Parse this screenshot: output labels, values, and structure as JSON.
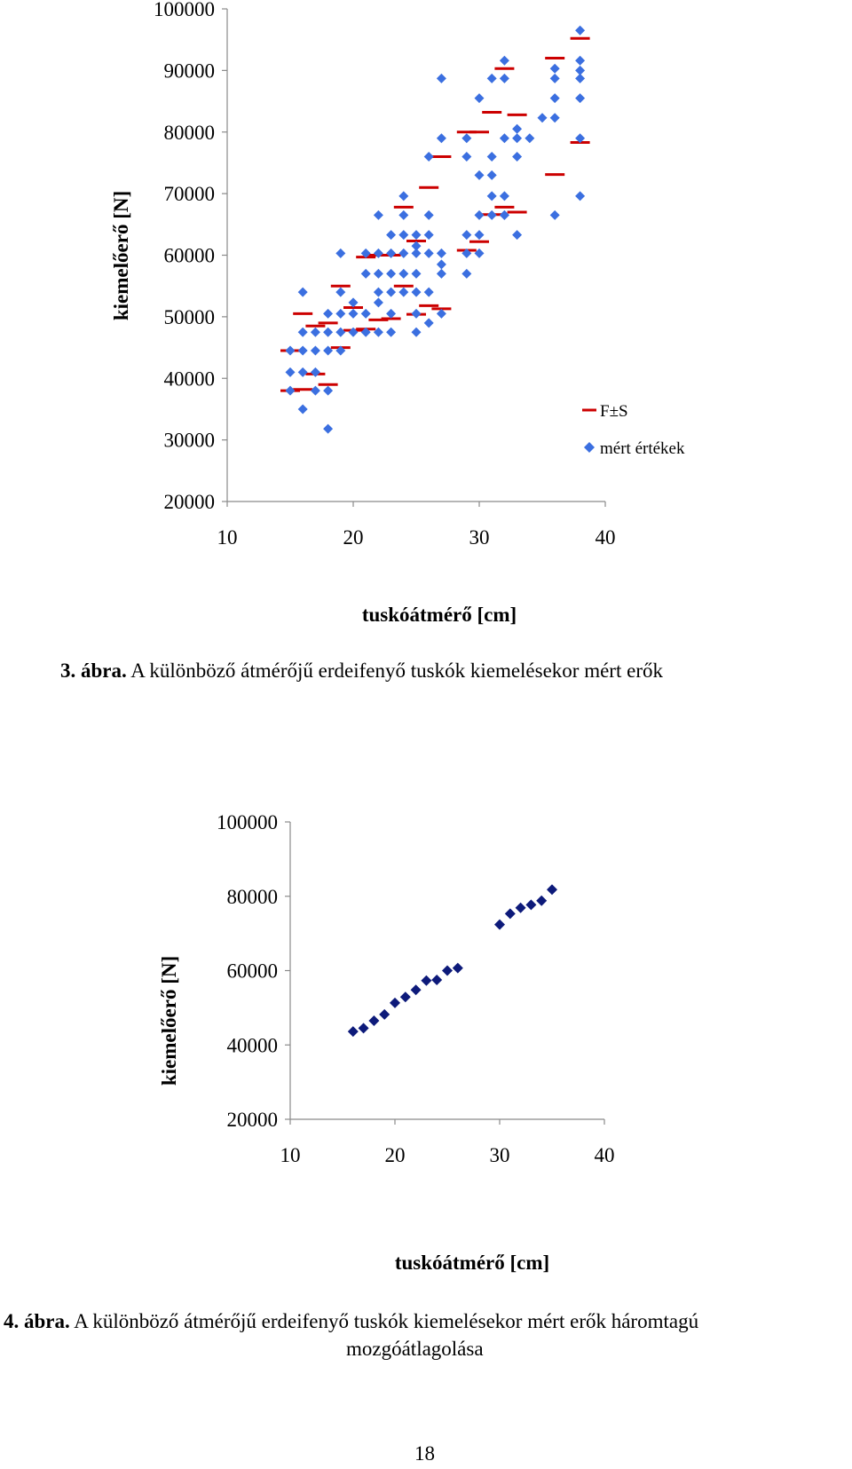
{
  "chart_data": [
    {
      "type": "scatter",
      "ylabel": "kiemelőerő [N]",
      "xlabel": "tuskóátmérő [cm]",
      "xlim": [
        10,
        40
      ],
      "ylim": [
        20000,
        100000
      ],
      "xticks": [
        "10",
        "20",
        "30",
        "40"
      ],
      "yticks": [
        "20000",
        "30000",
        "40000",
        "50000",
        "60000",
        "70000",
        "80000",
        "90000",
        "100000"
      ],
      "legend_position": "right",
      "series": [
        {
          "name": "F±S",
          "marker": "dash",
          "color": "#cc0000",
          "x": [
            15,
            15,
            16,
            16,
            17,
            17,
            18,
            18,
            19,
            19,
            20,
            20,
            21,
            21,
            22,
            22,
            23,
            23,
            24,
            24,
            25,
            25,
            26,
            26,
            27,
            27,
            29,
            29,
            30,
            30,
            31,
            31,
            32,
            32,
            33,
            33,
            36,
            36,
            38,
            38
          ],
          "y": [
            44500,
            38000,
            50500,
            38200,
            48500,
            40700,
            49000,
            39000,
            55000,
            45000,
            51500,
            47800,
            59700,
            48000,
            60000,
            49500,
            60000,
            49700,
            67800,
            55000,
            62300,
            50400,
            71000,
            51800,
            76000,
            51300,
            80000,
            60800,
            80000,
            62200,
            83200,
            66600,
            90300,
            67800,
            82800,
            67000,
            92000,
            73100,
            95200,
            78300
          ]
        },
        {
          "name": "mért értékek",
          "marker": "diamond",
          "color": "#3b6fe0",
          "x": [
            15,
            15,
            15,
            16,
            16,
            16,
            16,
            16,
            17,
            17,
            17,
            17,
            18,
            18,
            18,
            18,
            18,
            19,
            19,
            19,
            19,
            19,
            20,
            20,
            20,
            21,
            21,
            21,
            21,
            22,
            22,
            22,
            22,
            22,
            22,
            23,
            23,
            23,
            23,
            23,
            23,
            24,
            24,
            24,
            24,
            24,
            24,
            25,
            25,
            25,
            25,
            25,
            25,
            25,
            26,
            26,
            26,
            26,
            26,
            26,
            27,
            27,
            27,
            27,
            27,
            27,
            29,
            29,
            29,
            29,
            29,
            30,
            30,
            30,
            30,
            30,
            31,
            31,
            31,
            31,
            31,
            32,
            32,
            32,
            32,
            32,
            32,
            33,
            33,
            33,
            33,
            34,
            35,
            36,
            36,
            36,
            36,
            36,
            38,
            38,
            38,
            38,
            38,
            38,
            38
          ],
          "y": [
            44500,
            41000,
            38000,
            54000,
            47500,
            44500,
            41000,
            35000,
            47500,
            44500,
            41000,
            38000,
            50500,
            47500,
            44500,
            38000,
            31800,
            60300,
            54000,
            50500,
            47500,
            44500,
            52300,
            50500,
            47500,
            60300,
            57000,
            50500,
            47500,
            66500,
            60300,
            57000,
            54000,
            52300,
            47500,
            63300,
            60300,
            57000,
            54000,
            50500,
            47500,
            69600,
            66500,
            63300,
            60300,
            57000,
            54000,
            63300,
            61500,
            60300,
            57000,
            54000,
            50500,
            47500,
            76000,
            66500,
            63300,
            60300,
            54000,
            49000,
            88700,
            79000,
            60300,
            58500,
            57000,
            50500,
            79000,
            76000,
            63300,
            60300,
            57000,
            85500,
            73000,
            66500,
            63300,
            60300,
            88700,
            76000,
            73000,
            69600,
            66500,
            91600,
            88700,
            79000,
            69600,
            66500,
            66500,
            80500,
            79000,
            76000,
            63300,
            79000,
            82300,
            90300,
            88700,
            85500,
            82300,
            66500,
            96500,
            91600,
            90000,
            88700,
            85500,
            79000,
            69600
          ]
        }
      ]
    },
    {
      "type": "scatter",
      "ylabel": "kiemelőerő [N]",
      "xlabel": "tuskóátmérő [cm]",
      "xlim": [
        10,
        40
      ],
      "ylim": [
        20000,
        100000
      ],
      "xticks": [
        "10",
        "20",
        "30",
        "40"
      ],
      "yticks": [
        "20000",
        "40000",
        "60000",
        "80000",
        "100000"
      ],
      "series": [
        {
          "name": "háromtagú mozgóátlag",
          "marker": "diamond",
          "color": "#0d1a7a",
          "x": [
            16,
            17,
            18,
            19,
            20,
            21,
            22,
            23,
            24,
            25,
            26,
            30,
            31,
            32,
            33,
            34,
            35
          ],
          "y": [
            43600,
            44500,
            46500,
            48200,
            51300,
            52900,
            54800,
            57300,
            57500,
            60000,
            60700,
            72400,
            75300,
            76900,
            77700,
            78800,
            81800
          ]
        }
      ]
    }
  ],
  "captions": {
    "fig3_label": "3. ábra.",
    "fig3_text": " A különböző átmérőjű erdeifenyő tuskók kiemelésekor mért erők",
    "fig4_label": "4. ábra.",
    "fig4_text": " A különböző átmérőjű erdeifenyő tuskók kiemelésekor mért erők háromtagú",
    "fig4_text2": "mozgóátlagolása"
  },
  "page_number": "18"
}
